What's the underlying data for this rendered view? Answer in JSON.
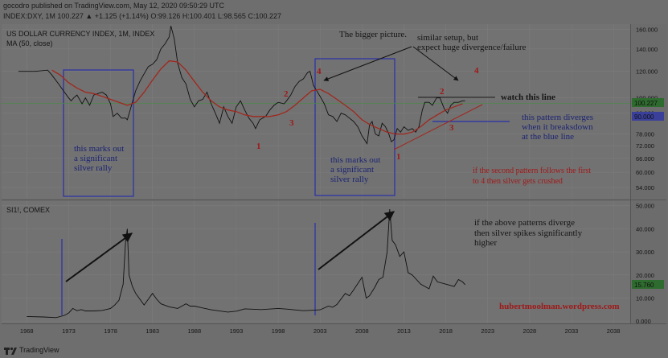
{
  "header": {
    "published": "gocodro published on TradingView.com, May 12, 2020 09:50:29 UTC",
    "ohlc": "INDEX:DXY, 1M 100.227 ▲ +1.125 (+1.14%) O:99.126 H:100.401 L:98.565 C:100.227"
  },
  "footer": {
    "brand": "TradingView"
  },
  "colors": {
    "background": "#6e6e6e",
    "panel": "#727272",
    "price": "#111111",
    "ma": "#a0281e",
    "box": "#2a2fa8",
    "annotation_red": "#a01818",
    "annotation_blue": "#1c2473",
    "grid": "#7a7a7a",
    "text": "#151515"
  },
  "chart_data": [
    {
      "type": "line",
      "title": "US DOLLAR CURRENCY INDEX, 1M, INDEX",
      "subtitle": "MA (50, close)",
      "series": [
        {
          "name": "US DOLLAR CURRENCY INDEX",
          "x": [
            1967.0,
            1969.0,
            1970.5,
            1971.0,
            1971.8,
            1972.5,
            1973.0,
            1973.3,
            1973.6,
            1974.0,
            1974.6,
            1975.0,
            1975.5,
            1976.0,
            1976.5,
            1977.0,
            1977.5,
            1978.0,
            1978.3,
            1978.8,
            1979.3,
            1979.8,
            1980.0,
            1980.5,
            1981.0,
            1981.5,
            1982.0,
            1982.5,
            1983.0,
            1983.5,
            1984.0,
            1984.5,
            1985.0,
            1985.2,
            1985.6,
            1986.0,
            1986.5,
            1987.0,
            1987.5,
            1988.0,
            1988.5,
            1989.0,
            1989.5,
            1990.0,
            1990.5,
            1991.0,
            1991.5,
            1992.0,
            1992.5,
            1993.0,
            1993.5,
            1994.0,
            1994.5,
            1995.0,
            1995.3,
            1995.8,
            1996.5,
            1997.0,
            1997.5,
            1998.0,
            1998.7,
            1999.0,
            1999.5,
            2000.0,
            2000.5,
            2001.0,
            2001.5,
            2001.8,
            2002.2,
            2002.6,
            2003.0,
            2003.5,
            2004.0,
            2004.5,
            2005.0,
            2005.5,
            2006.0,
            2006.5,
            2007.0,
            2007.5,
            2008.0,
            2008.3,
            2008.6,
            2008.9,
            2009.2,
            2009.6,
            2010.0,
            2010.4,
            2010.8,
            2011.2,
            2011.5,
            2011.8,
            2012.2,
            2012.6,
            2013.0,
            2013.5,
            2014.0,
            2014.4,
            2014.8,
            2015.2,
            2015.5,
            2016.0,
            2016.4,
            2016.9,
            2017.3,
            2017.8,
            2018.2,
            2018.6,
            2019.0,
            2019.5,
            2020.0,
            2020.3
          ],
          "values": [
            120,
            120,
            121,
            117,
            110,
            104,
            100,
            98,
            100,
            102,
            96,
            100,
            95,
            102,
            103,
            104,
            102,
            96,
            88,
            90,
            87,
            87,
            86,
            95,
            105,
            112,
            118,
            124,
            126,
            130,
            140,
            145,
            152,
            164,
            150,
            127,
            115,
            110,
            99,
            94,
            98,
            99,
            104,
            96,
            90,
            84,
            94,
            88,
            84,
            94,
            98,
            92,
            87,
            84,
            81,
            86,
            88,
            92,
            95,
            97,
            96,
            98,
            102,
            108,
            112,
            114,
            119,
            120,
            109,
            105,
            101,
            96,
            89,
            88,
            85,
            90,
            89,
            87,
            85,
            82,
            77,
            75,
            73,
            83,
            85,
            78,
            77,
            84,
            82,
            78,
            74,
            75,
            81,
            79,
            82,
            80,
            81,
            79,
            82,
            92,
            97,
            97,
            95,
            100,
            100,
            93,
            90,
            95,
            97,
            97,
            98,
            98
          ]
        },
        {
          "name": "MA (50, close)",
          "x": [
            1971,
            1972,
            1973,
            1974,
            1975,
            1976,
            1977,
            1978,
            1979,
            1980,
            1981,
            1982,
            1983,
            1984,
            1985,
            1986,
            1987,
            1988,
            1989,
            1990,
            1991,
            1992,
            1993,
            1994,
            1995,
            1996,
            1997,
            1998,
            1999,
            2000,
            2001,
            2002,
            2003,
            2004,
            2005,
            2006,
            2007,
            2008,
            2009,
            2010,
            2011,
            2012,
            2013,
            2014,
            2015,
            2016,
            2017,
            2018,
            2019,
            2020
          ],
          "values": [
            121,
            117,
            111,
            107,
            104,
            103,
            101,
            99,
            97,
            95,
            97,
            104,
            113,
            122,
            129,
            128,
            121,
            112,
            104,
            98,
            94,
            92,
            91,
            89,
            88,
            88,
            88,
            89,
            91,
            95,
            100,
            105,
            106,
            103,
            99,
            95,
            91,
            86,
            83,
            81,
            79,
            78,
            78,
            79,
            82,
            86,
            89,
            92,
            94,
            96
          ]
        }
      ],
      "ylim": [
        50,
        166
      ],
      "xlim": [
        1965,
        2040
      ],
      "y_ticks": [
        "160.000",
        "140.000",
        "120.000",
        "100.000",
        "90.000",
        "78.000",
        "72.000",
        "66.000",
        "60.000",
        "54.000"
      ],
      "price_label": "100.227",
      "line_labels": [
        "90.000"
      ],
      "log_scale": true,
      "grid": true,
      "annotations": {
        "bigger_picture": "The bigger picture.",
        "similar_setup_1": "similar setup, but",
        "similar_setup_2": "expect huge divergence/failure",
        "watch_line": "watch this line",
        "diverge_1": "this pattern diverges",
        "diverge_2": "when it breaksdown",
        "diverge_3": "at the blue line",
        "rally_left_1": "this marks out",
        "rally_left_2": "a significant",
        "rally_left_3": "silver rally",
        "rally_right_1": "this marks out",
        "rally_right_2": "a significant",
        "rally_right_3": "silver rally",
        "second_pattern_1": "if the second pattern follows the first",
        "second_pattern_2": "to 4 then silver gets crushed",
        "wave_left": [
          "1",
          "2",
          "3",
          "4"
        ],
        "wave_right": [
          "1",
          "2",
          "3",
          "4"
        ]
      }
    },
    {
      "type": "line",
      "title": "SI1!, COMEX",
      "series": [
        {
          "name": "SI1!, COMEX",
          "x": [
            1968.0,
            1970.0,
            1971.5,
            1972.5,
            1973.0,
            1973.5,
            1974.0,
            1974.5,
            1975.0,
            1976.0,
            1977.0,
            1978.0,
            1978.5,
            1979.0,
            1979.5,
            1979.8,
            1980.0,
            1980.2,
            1980.6,
            1981.0,
            1981.5,
            1982.0,
            1982.6,
            1983.0,
            1983.5,
            1984.0,
            1985.0,
            1986.0,
            1987.0,
            1987.5,
            1988.0,
            1990.0,
            1992.0,
            1993.0,
            1994.0,
            1996.0,
            1998.0,
            1999.0,
            2001.0,
            2002.0,
            2003.0,
            2004.0,
            2004.5,
            2005.0,
            2006.0,
            2006.5,
            2007.0,
            2008.0,
            2008.5,
            2008.9,
            2009.5,
            2010.0,
            2010.5,
            2011.0,
            2011.3,
            2011.6,
            2012.0,
            2012.5,
            2013.0,
            2013.5,
            2014.0,
            2015.0,
            2016.0,
            2016.5,
            2017.0,
            2018.0,
            2019.0,
            2019.5,
            2020.0,
            2020.3
          ],
          "values": [
            2.0,
            1.8,
            1.5,
            2.5,
            3.5,
            5.5,
            4.5,
            5.0,
            4.4,
            4.4,
            4.6,
            5.5,
            7.0,
            9.0,
            16.0,
            35.0,
            40.0,
            20.0,
            15.0,
            12.0,
            9.5,
            7.0,
            10.0,
            12.0,
            9.5,
            7.5,
            6.2,
            5.5,
            7.5,
            6.5,
            6.5,
            4.9,
            3.9,
            4.3,
            5.3,
            5.0,
            5.5,
            5.2,
            4.5,
            4.7,
            4.9,
            6.5,
            6.0,
            7.2,
            12.0,
            11.0,
            13.5,
            19.0,
            10.0,
            11.0,
            14.5,
            18.0,
            19.0,
            30.0,
            48.5,
            35.0,
            33.0,
            28.0,
            30.0,
            21.0,
            20.0,
            16.0,
            14.0,
            19.5,
            17.0,
            16.0,
            15.0,
            18.0,
            17.0,
            15.76
          ]
        }
      ],
      "ylim": [
        -1,
        52
      ],
      "xlim": [
        1965,
        2040
      ],
      "y_ticks": [
        "50.000",
        "40.000",
        "30.000",
        "20.000",
        "10.000",
        "0.000"
      ],
      "x_ticks": [
        "1968",
        "1973",
        "1978",
        "1983",
        "1988",
        "1993",
        "1998",
        "2003",
        "2008",
        "2013",
        "2018",
        "2023",
        "2028",
        "2033",
        "2038"
      ],
      "price_label": "15.760",
      "grid": true,
      "annotations": {
        "diverge_1": "if the above patterns diverge",
        "diverge_2": "then silver spikes significantly",
        "diverge_3": "higher",
        "website": "hubertmoolman.wordpress.com"
      }
    }
  ]
}
